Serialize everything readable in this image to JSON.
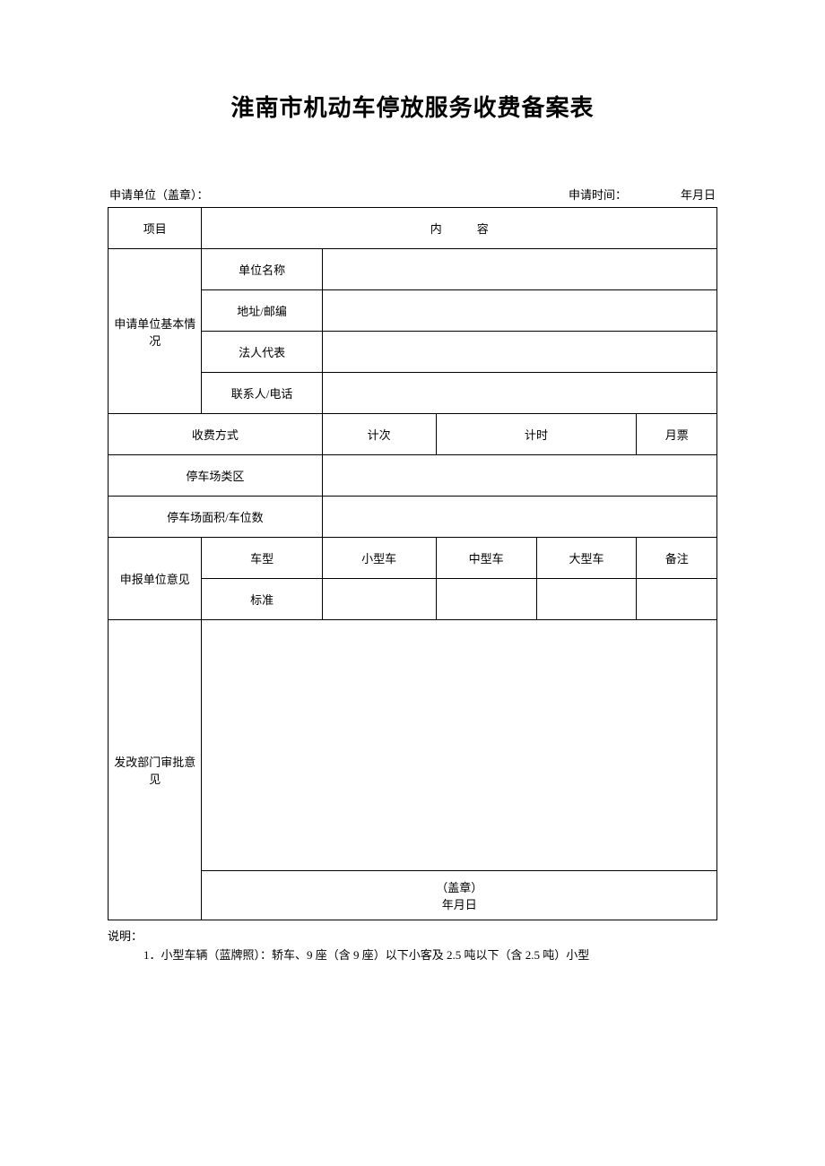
{
  "title": "淮南市机动车停放服务收费备案表",
  "header": {
    "applicant_unit_label": "申请单位（盖章）：",
    "application_time_label": "申请时间：",
    "date_label": "年月日"
  },
  "table": {
    "row_project": "项目",
    "content_header": "内   容",
    "basic_info": "申请单位基本情况",
    "unit_name": "单位名称",
    "address": "地址/邮编",
    "legal_rep": "法人代表",
    "contact": "联系人/电话",
    "fee_method": "收费方式",
    "by_count": "计次",
    "by_time": "计时",
    "monthly": "月票",
    "parking_type": "停车场类区",
    "parking_area": "停车场面积/车位数",
    "unit_opinion": "申报单位意见",
    "vehicle_type": "车型",
    "small_car": "小型车",
    "medium_car": "中型车",
    "large_car": "大型车",
    "remark": "备注",
    "standard": "标准",
    "approval": "发改部门审批意见",
    "seal": "（盖章）",
    "sig_date": "年月日"
  },
  "notes": {
    "label": "说明：",
    "item1": "1．小型车辆（蓝牌照）：轿车、9 座（含 9 座）以下小客及 2.5 吨以下（含 2.5 吨）小型"
  },
  "style": {
    "background": "#ffffff",
    "border_color": "#000000",
    "title_fontsize": 26,
    "body_fontsize": 13
  }
}
